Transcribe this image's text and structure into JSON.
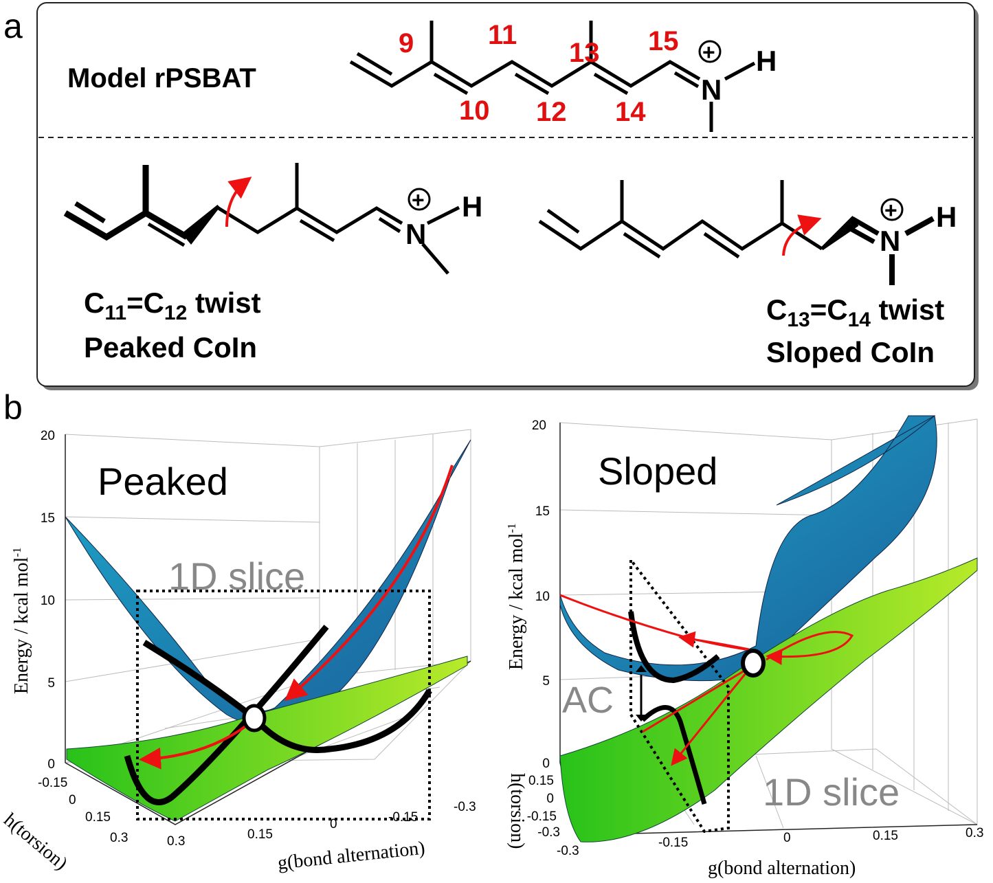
{
  "panel_a": {
    "label": "a",
    "model_title": "Model rPSBAT",
    "atom_numbers": [
      "9",
      "11",
      "13",
      "15",
      "10",
      "12",
      "14"
    ],
    "atoms": {
      "N": "N",
      "H": "H",
      "charge": "+"
    },
    "left": {
      "twist_prefix": "C",
      "sub1": "11",
      "mid": "=C",
      "sub2": "12",
      "suffix": " twist",
      "name": "Peaked CoIn"
    },
    "right": {
      "twist_prefix": "C",
      "sub1": "13",
      "mid": "=C",
      "sub2": "14",
      "suffix": " twist",
      "name": "Sloped CoIn"
    }
  },
  "panel_b": {
    "label": "b",
    "left": {
      "title": "Peaked",
      "slice_label": "1D slice",
      "y_label": "Energy / kcal mol",
      "y_sup": "-1",
      "z_ticks": [
        "20",
        "15",
        "10",
        "5",
        "0"
      ],
      "h_ticks": [
        "-0.15",
        "0",
        "0.15",
        "0.3"
      ],
      "g_ticks": [
        "0.3",
        "0.15",
        "0",
        "-0.15",
        "-0.3"
      ],
      "h_label": "h(torsion)",
      "g_label": "g(bond alternation)"
    },
    "right": {
      "title": "Sloped",
      "slice_label": "1D slice",
      "ac_label": "AC",
      "y_label": "Energy / kcal mol",
      "y_sup": "-1",
      "z_ticks": [
        "20",
        "15",
        "10",
        "5",
        "0"
      ],
      "h_ticks": [
        "0.15",
        "0",
        "-0.15",
        "-0.3"
      ],
      "g_ticks": [
        "-0.3",
        "-0.15",
        "0",
        "0.15",
        "0.3"
      ],
      "h_label": "h(torsion)",
      "g_label": "g(bond alternation)"
    }
  },
  "colors": {
    "upper_surface": "#2a86b8",
    "lower_surface": "#3fcc1e",
    "arrow": "#ee1111",
    "numbers": "#e01010"
  }
}
